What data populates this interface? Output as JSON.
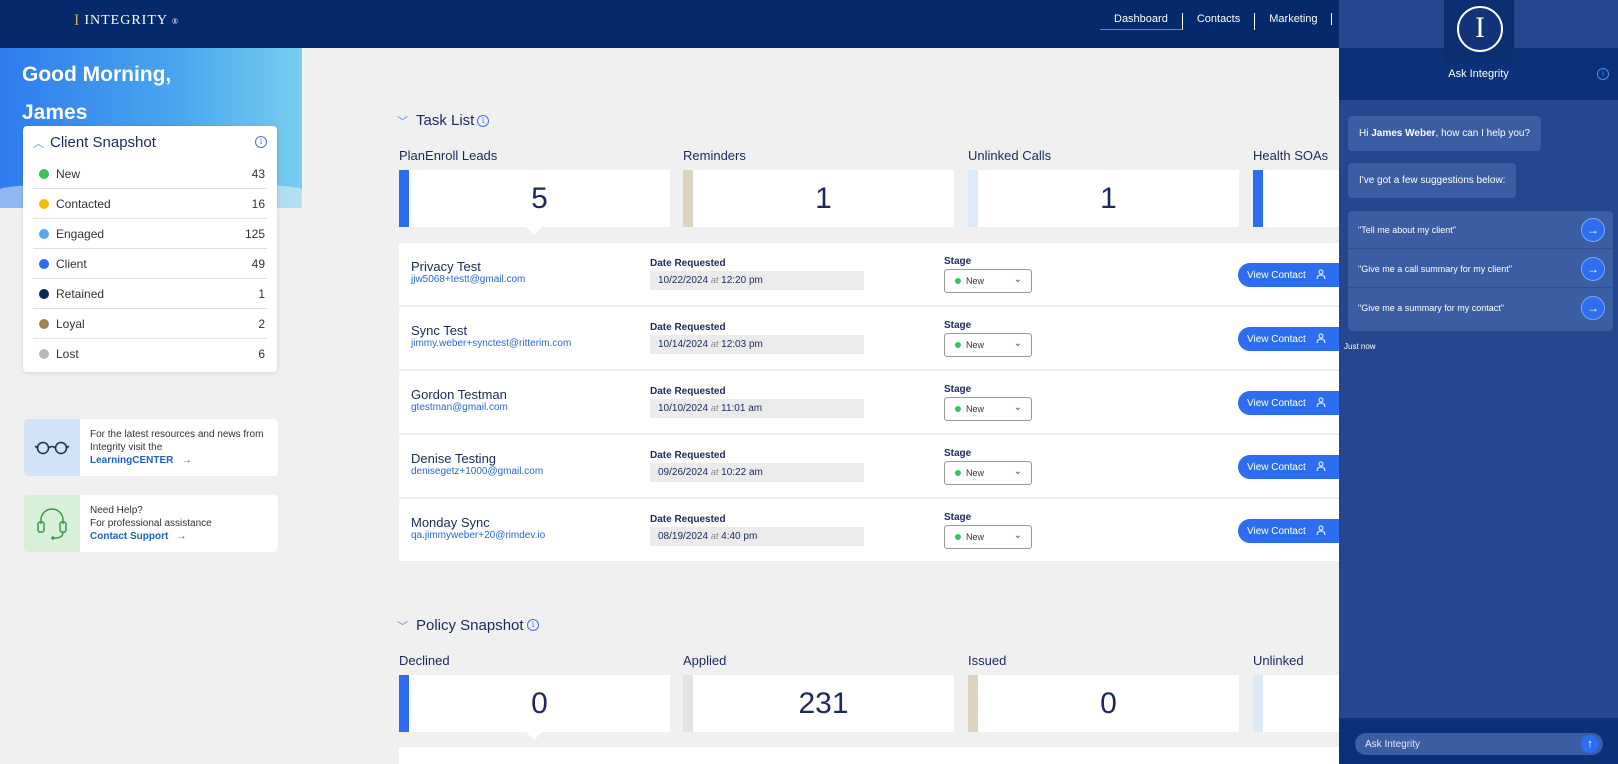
{
  "header": {
    "logo": "INTEGRITY",
    "logo_mark": "I",
    "logo_reg": "®",
    "nav": [
      "Dashboard",
      "Contacts",
      "Marketing"
    ],
    "active_nav": "Dashboard"
  },
  "greeting": {
    "line1": "Good Morning,",
    "line2": "James"
  },
  "client_snapshot": {
    "title": "Client Snapshot",
    "rows": [
      {
        "label": "New",
        "count": "43",
        "color": "#3cc25a"
      },
      {
        "label": "Contacted",
        "count": "16",
        "color": "#f2c200"
      },
      {
        "label": "Engaged",
        "count": "125",
        "color": "#5ba6f0"
      },
      {
        "label": "Client",
        "count": "49",
        "color": "#2d6ef0"
      },
      {
        "label": "Retained",
        "count": "1",
        "color": "#0b2756"
      },
      {
        "label": "Loyal",
        "count": "2",
        "color": "#a08355"
      },
      {
        "label": "Lost",
        "count": "6",
        "color": "#b8b8b8"
      }
    ]
  },
  "learning_card": {
    "line1": "For the latest resources and news from",
    "line2": "Integrity visit the",
    "link": "LearningCENTER",
    "arrow": "→"
  },
  "support_card": {
    "line1": "Need Help?",
    "line2": "For professional assistance",
    "link": "Contact Support",
    "arrow": "→"
  },
  "task_list": {
    "title": "Task List",
    "tiles": [
      {
        "label": "PlanEnroll Leads",
        "value": "5",
        "bar_color": "#2d6ef0"
      },
      {
        "label": "Reminders",
        "value": "1",
        "bar_color": "#ddd3c0"
      },
      {
        "label": "Unlinked Calls",
        "value": "1",
        "bar_color": "#dde9f7"
      },
      {
        "label": "Health SOAs",
        "value": "",
        "bar_color": "#2d6ef0"
      }
    ],
    "date_label": "Date Requested",
    "stage_label": "Stage",
    "button_label": "View Contact",
    "at": "at",
    "rows": [
      {
        "name": "Privacy Test",
        "email": "jjw5068+testt@gmail.com",
        "date": "10/22/2024",
        "time": "12:20 pm",
        "stage": "New"
      },
      {
        "name": "Sync Test",
        "email": "jimmy.weber+synctest@ritterim.com",
        "date": "10/14/2024",
        "time": "12:03 pm",
        "stage": "New"
      },
      {
        "name": "Gordon Testman",
        "email": "gtestman@gmail.com",
        "date": "10/10/2024",
        "time": "11:01 am",
        "stage": "New"
      },
      {
        "name": "Denise Testing",
        "email": "denisegetz+1000@gmail.com",
        "date": "09/26/2024",
        "time": "10:22 am",
        "stage": "New"
      },
      {
        "name": "Monday Sync",
        "email": "qa.jimmyweber+20@rimdev.io",
        "date": "08/19/2024",
        "time": "4:40 pm",
        "stage": "New"
      }
    ]
  },
  "policy_snapshot": {
    "title": "Policy Snapshot",
    "tiles": [
      {
        "label": "Declined",
        "value": "0",
        "bar_color": "#2d6ef0"
      },
      {
        "label": "Applied",
        "value": "231",
        "bar_color": "#e3e3e3"
      },
      {
        "label": "Issued",
        "value": "0",
        "bar_color": "#ddd3c0"
      },
      {
        "label": "Unlinked",
        "value": "",
        "bar_color": "#dde9f7"
      }
    ]
  },
  "chat": {
    "title": "Ask Integrity",
    "greeting_prefix": "Hi ",
    "user": "James Weber",
    "greeting_suffix": ", how can I help you?",
    "intro": "I've got a few suggestions below:",
    "suggestions": [
      "\"Tell me about my client\"",
      "\"Give me a call summary for my client\"",
      "\"Give me a summary for my contact\""
    ],
    "timestamp": "Just now",
    "input_placeholder": "Ask Integrity"
  }
}
